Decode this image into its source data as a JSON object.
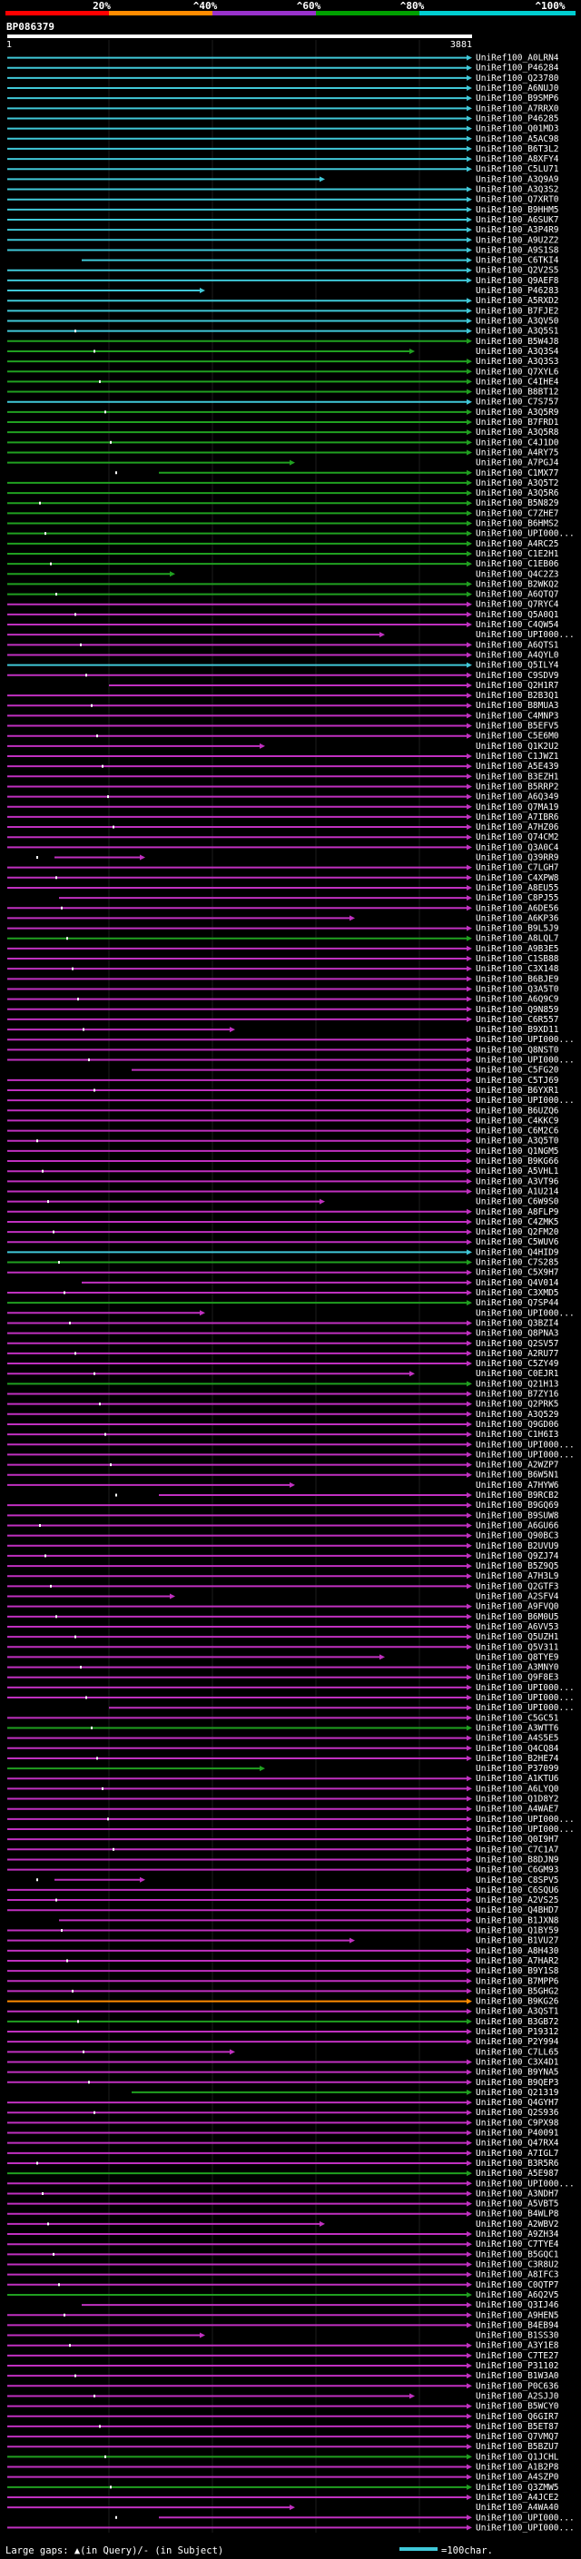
{
  "query": {
    "id": "BP086379",
    "start": "1",
    "end": "3881"
  },
  "scale": {
    "labels": [
      "20%",
      "^40%",
      "^60%",
      "^80%",
      "^100%"
    ],
    "colors": [
      "#ff0000",
      "#ff8c00",
      "#9932cc",
      "#00a000",
      "#00ced1"
    ]
  },
  "hit_colors": {
    "cyan": "#40c8d8",
    "green": "#20a020",
    "magenta": "#c030c0",
    "orange": "#ff8c00"
  },
  "hits": [
    {
      "label": "UniRef100_A0LRN4",
      "color": "cyan"
    },
    {
      "label": "UniRef100_P46284",
      "color": "cyan"
    },
    {
      "label": "UniRef100_Q23780",
      "color": "cyan"
    },
    {
      "label": "UniRef100_A6NUJ0",
      "color": "cyan"
    },
    {
      "label": "UniRef100_B9SMP6",
      "color": "cyan"
    },
    {
      "label": "UniRef100_A7RRX0",
      "color": "cyan"
    },
    {
      "label": "UniRef100_P46285",
      "color": "cyan"
    },
    {
      "label": "UniRef100_Q01MD3",
      "color": "cyan"
    },
    {
      "label": "UniRef100_A5AC98",
      "color": "cyan"
    },
    {
      "label": "UniRef100_B6T3L2",
      "color": "cyan"
    },
    {
      "label": "UniRef100_A8XFY4",
      "color": "cyan"
    },
    {
      "label": "UniRef100_C5LU71",
      "color": "cyan"
    },
    {
      "label": "UniRef100_A3Q9A9",
      "color": "cyan"
    },
    {
      "label": "UniRef100_A3Q3S2",
      "color": "cyan"
    },
    {
      "label": "UniRef100_Q7XRT0",
      "color": "cyan"
    },
    {
      "label": "UniRef100_B9HHM5",
      "color": "cyan"
    },
    {
      "label": "UniRef100_A6SUK7",
      "color": "cyan"
    },
    {
      "label": "UniRef100_A3P4R9",
      "color": "cyan"
    },
    {
      "label": "UniRef100_A9U2Z2",
      "color": "cyan"
    },
    {
      "label": "UniRef100_A9S1S8",
      "color": "cyan"
    },
    {
      "label": "UniRef100_C6TKI4",
      "color": "cyan"
    },
    {
      "label": "UniRef100_Q2V2S5",
      "color": "cyan"
    },
    {
      "label": "UniRef100_Q9AEF8",
      "color": "cyan"
    },
    {
      "label": "UniRef100_P46283",
      "color": "cyan"
    },
    {
      "label": "UniRef100_A5RXD2",
      "color": "cyan"
    },
    {
      "label": "UniRef100_B7FJE2",
      "color": "cyan"
    },
    {
      "label": "UniRef100_A3QV50",
      "color": "cyan"
    },
    {
      "label": "UniRef100_A3Q5S1",
      "color": "cyan"
    },
    {
      "label": "UniRef100_B5W4J8",
      "color": "green"
    },
    {
      "label": "UniRef100_A3Q3S4",
      "color": "green"
    },
    {
      "label": "UniRef100_A3Q3S3",
      "color": "green"
    },
    {
      "label": "UniRef100_Q7XYL6",
      "color": "green"
    },
    {
      "label": "UniRef100_C4IHE4",
      "color": "green"
    },
    {
      "label": "UniRef100_B8BT12",
      "color": "green"
    },
    {
      "label": "UniRef100_C7S757",
      "color": "cyan"
    },
    {
      "label": "UniRef100_A3Q5R9",
      "color": "green"
    },
    {
      "label": "UniRef100_B7FRD1",
      "color": "green"
    },
    {
      "label": "UniRef100_A3Q5R8",
      "color": "green"
    },
    {
      "label": "UniRef100_C4J1D0",
      "color": "green"
    },
    {
      "label": "UniRef100_A4RY75",
      "color": "green"
    },
    {
      "label": "UniRef100_A7PGJ4",
      "color": "green"
    },
    {
      "label": "UniRef100_C1MX77",
      "color": "green"
    },
    {
      "label": "UniRef100_A3Q5T2",
      "color": "green"
    },
    {
      "label": "UniRef100_A3Q5R6",
      "color": "green"
    },
    {
      "label": "UniRef100_B5N829",
      "color": "green"
    },
    {
      "label": "UniRef100_C7ZHE7",
      "color": "green"
    },
    {
      "label": "UniRef100_B6HMS2",
      "color": "green"
    },
    {
      "label": "UniRef100_UPI000...",
      "color": "green"
    },
    {
      "label": "UniRef100_A4RC25",
      "color": "green"
    },
    {
      "label": "UniRef100_C1E2H1",
      "color": "green"
    },
    {
      "label": "UniRef100_C1EB06",
      "color": "green"
    },
    {
      "label": "UniRef100_Q4C2Z3",
      "color": "green"
    },
    {
      "label": "UniRef100_B2WKQ2",
      "color": "green"
    },
    {
      "label": "UniRef100_A6QTQ7",
      "color": "green"
    },
    {
      "label": "UniRef100_Q7RYC4",
      "color": "magenta"
    },
    {
      "label": "UniRef100_Q5A0Q1",
      "color": "magenta"
    },
    {
      "label": "UniRef100_C4QW54",
      "color": "magenta"
    },
    {
      "label": "UniRef100_UPI000...",
      "color": "magenta"
    },
    {
      "label": "UniRef100_A6QTS1",
      "color": "magenta"
    },
    {
      "label": "UniRef100_A4QYL0",
      "color": "magenta"
    },
    {
      "label": "UniRef100_Q5ILY4",
      "color": "cyan"
    },
    {
      "label": "UniRef100_C9SDV9",
      "color": "magenta"
    },
    {
      "label": "UniRef100_Q2H1R7",
      "color": "magenta"
    },
    {
      "label": "UniRef100_B2B3Q1",
      "color": "magenta"
    },
    {
      "label": "UniRef100_B8MUA3",
      "color": "magenta"
    },
    {
      "label": "UniRef100_C4MNP3",
      "color": "magenta"
    },
    {
      "label": "UniRef100_B5EFV5",
      "color": "magenta"
    },
    {
      "label": "UniRef100_C5E6M0",
      "color": "magenta"
    },
    {
      "label": "UniRef100_Q1K2U2",
      "color": "magenta"
    },
    {
      "label": "UniRef100_C1JWZ1",
      "color": "magenta"
    },
    {
      "label": "UniRef100_A5E439",
      "color": "magenta"
    },
    {
      "label": "UniRef100_B3EZH1",
      "color": "magenta"
    },
    {
      "label": "UniRef100_B5RRP2",
      "color": "magenta"
    },
    {
      "label": "UniRef100_A6Q349",
      "color": "magenta"
    },
    {
      "label": "UniRef100_Q7MA19",
      "color": "magenta"
    },
    {
      "label": "UniRef100_A7IBR6",
      "color": "magenta"
    },
    {
      "label": "UniRef100_A7HZ06",
      "color": "magenta"
    },
    {
      "label": "UniRef100_Q74CM2",
      "color": "magenta"
    },
    {
      "label": "UniRef100_Q3A0C4",
      "color": "magenta"
    },
    {
      "label": "UniRef100_Q39RR9",
      "color": "magenta"
    },
    {
      "label": "UniRef100_C7LGH7",
      "color": "magenta"
    },
    {
      "label": "UniRef100_C4XPW8",
      "color": "magenta"
    },
    {
      "label": "UniRef100_A8EU55",
      "color": "magenta"
    },
    {
      "label": "UniRef100_C8PJ55",
      "color": "magenta"
    },
    {
      "label": "UniRef100_A6DE56",
      "color": "magenta"
    },
    {
      "label": "UniRef100_A6KP36",
      "color": "magenta"
    },
    {
      "label": "UniRef100_B9L5J9",
      "color": "magenta"
    },
    {
      "label": "UniRef100_A8LQL7",
      "color": "green"
    },
    {
      "label": "UniRef100_A9B3E5",
      "color": "magenta"
    },
    {
      "label": "UniRef100_C1SB88",
      "color": "magenta"
    },
    {
      "label": "UniRef100_C3X148",
      "color": "magenta"
    },
    {
      "label": "UniRef100_B6BJE9",
      "color": "magenta"
    },
    {
      "label": "UniRef100_Q3A5T0",
      "color": "magenta"
    },
    {
      "label": "UniRef100_A6Q9C9",
      "color": "magenta"
    },
    {
      "label": "UniRef100_Q9N859",
      "color": "magenta"
    },
    {
      "label": "UniRef100_C6R557",
      "color": "magenta"
    },
    {
      "label": "UniRef100_B9XD11",
      "color": "magenta"
    },
    {
      "label": "UniRef100_UPI000...",
      "color": "magenta"
    },
    {
      "label": "UniRef100_Q8NST0",
      "color": "magenta"
    },
    {
      "label": "UniRef100_UPI000...",
      "color": "magenta"
    },
    {
      "label": "UniRef100_C5FG20",
      "color": "magenta"
    },
    {
      "label": "UniRef100_C5TJ69",
      "color": "magenta"
    },
    {
      "label": "UniRef100_B6YXR1",
      "color": "magenta"
    },
    {
      "label": "UniRef100_UPI000...",
      "color": "magenta"
    },
    {
      "label": "UniRef100_B6UZQ6",
      "color": "magenta"
    },
    {
      "label": "UniRef100_C4KKC9",
      "color": "magenta"
    },
    {
      "label": "UniRef100_C6M2C6",
      "color": "magenta"
    },
    {
      "label": "UniRef100_A3Q5T0",
      "color": "magenta"
    },
    {
      "label": "UniRef100_Q1NGM5",
      "color": "magenta"
    },
    {
      "label": "UniRef100_B9KG66",
      "color": "magenta"
    },
    {
      "label": "UniRef100_A5VHL1",
      "color": "magenta"
    },
    {
      "label": "UniRef100_A3VT96",
      "color": "magenta"
    },
    {
      "label": "UniRef100_A1U214",
      "color": "magenta"
    },
    {
      "label": "UniRef100_C6W9S0",
      "color": "magenta"
    },
    {
      "label": "UniRef100_A8FLP9",
      "color": "magenta"
    },
    {
      "label": "UniRef100_C4ZMK5",
      "color": "magenta"
    },
    {
      "label": "UniRef100_Q2FM20",
      "color": "magenta"
    },
    {
      "label": "UniRef100_C5WUV6",
      "color": "magenta"
    },
    {
      "label": "UniRef100_Q4HID9",
      "color": "cyan"
    },
    {
      "label": "UniRef100_C7S285",
      "color": "green"
    },
    {
      "label": "UniRef100_C5X9H7",
      "color": "magenta"
    },
    {
      "label": "UniRef100_Q4V014",
      "color": "magenta"
    },
    {
      "label": "UniRef100_C3XMD5",
      "color": "magenta"
    },
    {
      "label": "UniRef100_Q7SP44",
      "color": "green"
    },
    {
      "label": "UniRef100_UPI000...",
      "color": "magenta"
    },
    {
      "label": "UniRef100_Q3BZI4",
      "color": "magenta"
    },
    {
      "label": "UniRef100_Q8PNA3",
      "color": "magenta"
    },
    {
      "label": "UniRef100_Q2SV57",
      "color": "magenta"
    },
    {
      "label": "UniRef100_A2RU77",
      "color": "magenta"
    },
    {
      "label": "UniRef100_C5ZY49",
      "color": "magenta"
    },
    {
      "label": "UniRef100_C0EJR1",
      "color": "magenta"
    },
    {
      "label": "UniRef100_Q21H13",
      "color": "green"
    },
    {
      "label": "UniRef100_B7ZY16",
      "color": "magenta"
    },
    {
      "label": "UniRef100_Q2PRK5",
      "color": "magenta"
    },
    {
      "label": "UniRef100_A3Q529",
      "color": "magenta"
    },
    {
      "label": "UniRef100_Q9GD06",
      "color": "magenta"
    },
    {
      "label": "UniRef100_C1H6I3",
      "color": "magenta"
    },
    {
      "label": "UniRef100_UPI000...",
      "color": "magenta"
    },
    {
      "label": "UniRef100_UPI000...",
      "color": "magenta"
    },
    {
      "label": "UniRef100_A2WZP7",
      "color": "magenta"
    },
    {
      "label": "UniRef100_B6W5N1",
      "color": "magenta"
    },
    {
      "label": "UniRef100_A7HYW6",
      "color": "magenta"
    },
    {
      "label": "UniRef100_B9RCB2",
      "color": "magenta"
    },
    {
      "label": "UniRef100_B9GQ69",
      "color": "magenta"
    },
    {
      "label": "UniRef100_B9SUW8",
      "color": "magenta"
    },
    {
      "label": "UniRef100_A6GU66",
      "color": "magenta"
    },
    {
      "label": "UniRef100_Q90BC3",
      "color": "magenta"
    },
    {
      "label": "UniRef100_B2UVU9",
      "color": "magenta"
    },
    {
      "label": "UniRef100_Q9ZJ74",
      "color": "magenta"
    },
    {
      "label": "UniRef100_B5Z9Q5",
      "color": "magenta"
    },
    {
      "label": "UniRef100_A7H3L9",
      "color": "magenta"
    },
    {
      "label": "UniRef100_Q2GTF3",
      "color": "magenta"
    },
    {
      "label": "UniRef100_A2SFV4",
      "color": "magenta"
    },
    {
      "label": "UniRef100_A9FVQ0",
      "color": "magenta"
    },
    {
      "label": "UniRef100_B6M0U5",
      "color": "magenta"
    },
    {
      "label": "UniRef100_A6VV53",
      "color": "magenta"
    },
    {
      "label": "UniRef100_Q5UZH1",
      "color": "magenta"
    },
    {
      "label": "UniRef100_Q5V311",
      "color": "magenta"
    },
    {
      "label": "UniRef100_Q8TYE9",
      "color": "magenta"
    },
    {
      "label": "UniRef100_A3MNY0",
      "color": "magenta"
    },
    {
      "label": "UniRef100_Q9F8E3",
      "color": "magenta"
    },
    {
      "label": "UniRef100_UPI000...",
      "color": "magenta"
    },
    {
      "label": "UniRef100_UPI000...",
      "color": "magenta"
    },
    {
      "label": "UniRef100_UPI000...",
      "color": "magenta"
    },
    {
      "label": "UniRef100_C5GC51",
      "color": "magenta"
    },
    {
      "label": "UniRef100_A3WTT6",
      "color": "green"
    },
    {
      "label": "UniRef100_A4S5E5",
      "color": "magenta"
    },
    {
      "label": "UniRef100_Q4CQ84",
      "color": "magenta"
    },
    {
      "label": "UniRef100_B2HE74",
      "color": "magenta"
    },
    {
      "label": "UniRef100_P37099",
      "color": "green"
    },
    {
      "label": "UniRef100_A1KTU6",
      "color": "magenta"
    },
    {
      "label": "UniRef100_A6LYQ0",
      "color": "magenta"
    },
    {
      "label": "UniRef100_Q1D8Y2",
      "color": "magenta"
    },
    {
      "label": "UniRef100_A4WAE7",
      "color": "magenta"
    },
    {
      "label": "UniRef100_UPI000...",
      "color": "magenta"
    },
    {
      "label": "UniRef100_UPI000...",
      "color": "magenta"
    },
    {
      "label": "UniRef100_Q0I9H7",
      "color": "magenta"
    },
    {
      "label": "UniRef100_C7C1A7",
      "color": "magenta"
    },
    {
      "label": "UniRef100_B8DJN9",
      "color": "magenta"
    },
    {
      "label": "UniRef100_C6GM93",
      "color": "magenta"
    },
    {
      "label": "UniRef100_C8SPV5",
      "color": "magenta"
    },
    {
      "label": "UniRef100_C6SQU6",
      "color": "magenta"
    },
    {
      "label": "UniRef100_A2VS25",
      "color": "magenta"
    },
    {
      "label": "UniRef100_Q4BHD7",
      "color": "magenta"
    },
    {
      "label": "UniRef100_B1JXN8",
      "color": "magenta"
    },
    {
      "label": "UniRef100_Q1BY59",
      "color": "magenta"
    },
    {
      "label": "UniRef100_B1VU27",
      "color": "magenta"
    },
    {
      "label": "UniRef100_A8H430",
      "color": "magenta"
    },
    {
      "label": "UniRef100_A7HAR2",
      "color": "magenta"
    },
    {
      "label": "UniRef100_B9Y1S8",
      "color": "magenta"
    },
    {
      "label": "UniRef100_B7MPP6",
      "color": "magenta"
    },
    {
      "label": "UniRef100_B5GHG2",
      "color": "magenta"
    },
    {
      "label": "UniRef100_B9KG26",
      "color": "orange"
    },
    {
      "label": "UniRef100_A3QST1",
      "color": "magenta"
    },
    {
      "label": "UniRef100_B3GB72",
      "color": "green"
    },
    {
      "label": "UniRef100_P19312",
      "color": "magenta"
    },
    {
      "label": "UniRef100_P2Y994",
      "color": "magenta"
    },
    {
      "label": "UniRef100_C7LL65",
      "color": "magenta"
    },
    {
      "label": "UniRef100_C3X4D1",
      "color": "magenta"
    },
    {
      "label": "UniRef100_B9YNA5",
      "color": "magenta"
    },
    {
      "label": "UniRef100_B9QEP3",
      "color": "magenta"
    },
    {
      "label": "UniRef100_Q21319",
      "color": "green"
    },
    {
      "label": "UniRef100_Q4GYH7",
      "color": "magenta"
    },
    {
      "label": "UniRef100_Q2S936",
      "color": "magenta"
    },
    {
      "label": "UniRef100_C9PX98",
      "color": "magenta"
    },
    {
      "label": "UniRef100_P40091",
      "color": "magenta"
    },
    {
      "label": "UniRef100_Q47RX4",
      "color": "magenta"
    },
    {
      "label": "UniRef100_A7IGL7",
      "color": "magenta"
    },
    {
      "label": "UniRef100_B3R5R6",
      "color": "magenta"
    },
    {
      "label": "UniRef100_A5E987",
      "color": "green"
    },
    {
      "label": "UniRef100_UPI000...",
      "color": "magenta"
    },
    {
      "label": "UniRef100_A3NDH7",
      "color": "magenta"
    },
    {
      "label": "UniRef100_A5VBT5",
      "color": "magenta"
    },
    {
      "label": "UniRef100_B4WLP8",
      "color": "magenta"
    },
    {
      "label": "UniRef100_A2WBV2",
      "color": "magenta"
    },
    {
      "label": "UniRef100_A9ZH34",
      "color": "magenta"
    },
    {
      "label": "UniRef100_C7TYE4",
      "color": "magenta"
    },
    {
      "label": "UniRef100_B5GQC1",
      "color": "magenta"
    },
    {
      "label": "UniRef100_C3R8U2",
      "color": "magenta"
    },
    {
      "label": "UniRef100_A8IFC3",
      "color": "magenta"
    },
    {
      "label": "UniRef100_C0QTP7",
      "color": "magenta"
    },
    {
      "label": "UniRef100_A6Q2V5",
      "color": "green"
    },
    {
      "label": "UniRef100_Q3IJ46",
      "color": "magenta"
    },
    {
      "label": "UniRef100_A9HEN5",
      "color": "magenta"
    },
    {
      "label": "UniRef100_B4EB94",
      "color": "magenta"
    },
    {
      "label": "UniRef100_B1SS30",
      "color": "magenta"
    },
    {
      "label": "UniRef100_A3Y1E8",
      "color": "magenta"
    },
    {
      "label": "UniRef100_C7TE27",
      "color": "magenta"
    },
    {
      "label": "UniRef100_P31102",
      "color": "magenta"
    },
    {
      "label": "UniRef100_B1W3A0",
      "color": "magenta"
    },
    {
      "label": "UniRef100_P0C636",
      "color": "magenta"
    },
    {
      "label": "UniRef100_A2SJJ0",
      "color": "magenta"
    },
    {
      "label": "UniRef100_B5WCY0",
      "color": "magenta"
    },
    {
      "label": "UniRef100_Q6GIR7",
      "color": "magenta"
    },
    {
      "label": "UniRef100_B5ET87",
      "color": "magenta"
    },
    {
      "label": "UniRef100_Q7VMQ7",
      "color": "magenta"
    },
    {
      "label": "UniRef100_B5BZU7",
      "color": "magenta"
    },
    {
      "label": "UniRef100_Q1JCHL",
      "color": "green"
    },
    {
      "label": "UniRef100_A1B2P8",
      "color": "magenta"
    },
    {
      "label": "UniRef100_A4SZP0",
      "color": "magenta"
    },
    {
      "label": "UniRef100_Q3ZMW5",
      "color": "green"
    },
    {
      "label": "UniRef100_A4JCE2",
      "color": "magenta"
    },
    {
      "label": "UniRef100_A4WA40",
      "color": "magenta"
    },
    {
      "label": "UniRef100_UPI000...",
      "color": "magenta"
    },
    {
      "label": "UniRef100_UPI000...",
      "color": "magenta"
    }
  ],
  "footer": {
    "gaps_label": "Large gaps: ▲(in Query)/- (in Subject)",
    "scale_label": "=100char."
  }
}
